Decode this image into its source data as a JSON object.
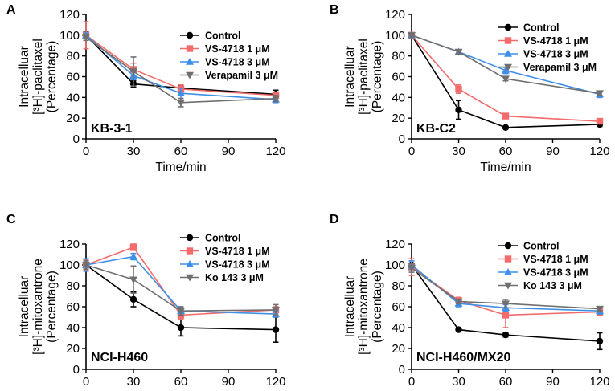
{
  "chart_data": [
    {
      "type": "line",
      "panel": "A",
      "label": "KB-3-1",
      "xlabel": "Time/min",
      "ylabel_lines": [
        "Intracelluar",
        "[³H]-paclitaxel",
        "(Percentage)"
      ],
      "xticks": [
        "0",
        "30",
        "60",
        "90",
        "120"
      ],
      "yticks": [
        "0",
        "20",
        "40",
        "60",
        "80",
        "100",
        "120"
      ],
      "xlim": [
        0,
        120
      ],
      "ylim": [
        0,
        120
      ],
      "x": [
        0,
        30,
        60,
        120
      ],
      "series": [
        {
          "name": "Control",
          "color": "#000000",
          "marker": "circle",
          "values": [
            100,
            53,
            49,
            43
          ],
          "errors": [
            3,
            3,
            2,
            4
          ]
        },
        {
          "name": "VS-4718 1 μM",
          "color": "#f36b6b",
          "marker": "square",
          "values": [
            100,
            67,
            48,
            42
          ],
          "errors": [
            13,
            6,
            4,
            3
          ]
        },
        {
          "name": "VS-4718 3 μM",
          "color": "#3f8fe8",
          "marker": "triangle-up",
          "values": [
            100,
            61,
            44,
            38
          ],
          "errors": [
            2,
            4,
            5,
            3
          ]
        },
        {
          "name": "Verapamil 3 μM",
          "color": "#6f6f6f",
          "marker": "triangle-down",
          "values": [
            98,
            65,
            35,
            39
          ],
          "errors": [
            3,
            14,
            4,
            3
          ]
        }
      ],
      "significance": ""
    },
    {
      "type": "line",
      "panel": "B",
      "label": "KB-C2",
      "xlabel": "Time/min",
      "ylabel_lines": [
        "Intracelluar",
        "[³H]-paclitaxel",
        "(Percentage)"
      ],
      "xticks": [
        "0",
        "30",
        "60",
        "90",
        "120"
      ],
      "yticks": [
        "0",
        "20",
        "40",
        "60",
        "80",
        "100",
        "120"
      ],
      "xlim": [
        0,
        120
      ],
      "ylim": [
        0,
        120
      ],
      "x": [
        0,
        30,
        60,
        120
      ],
      "series": [
        {
          "name": "Control",
          "color": "#000000",
          "marker": "circle",
          "values": [
            100,
            28,
            11,
            14
          ],
          "errors": [
            2,
            9,
            1,
            2
          ]
        },
        {
          "name": "VS-4718 1 μM",
          "color": "#f36b6b",
          "marker": "square",
          "values": [
            100,
            48,
            22,
            17
          ],
          "errors": [
            2,
            4,
            2,
            2
          ]
        },
        {
          "name": "VS-4718 3 μM",
          "color": "#3f8fe8",
          "marker": "triangle-up",
          "values": [
            100,
            84,
            66,
            43
          ],
          "errors": [
            2,
            2,
            3,
            3
          ]
        },
        {
          "name": "Verapamil 3 μM",
          "color": "#6f6f6f",
          "marker": "triangle-down",
          "values": [
            100,
            84,
            58,
            44
          ],
          "errors": [
            2,
            2,
            2,
            2
          ]
        }
      ],
      "significance": "**"
    },
    {
      "type": "line",
      "panel": "C",
      "label": "NCI-H460",
      "xlabel": "Time/min",
      "ylabel_lines": [
        "Intracelluar",
        "[³H]-mitoxantrone",
        "(Percentage)"
      ],
      "xticks": [
        "0",
        "30",
        "60",
        "90",
        "120"
      ],
      "yticks": [
        "0",
        "20",
        "40",
        "60",
        "80",
        "100",
        "120"
      ],
      "xlim": [
        0,
        120
      ],
      "ylim": [
        0,
        120
      ],
      "x": [
        0,
        30,
        60,
        120
      ],
      "series": [
        {
          "name": "Control",
          "color": "#000000",
          "marker": "circle",
          "values": [
            100,
            67,
            40,
            38
          ],
          "errors": [
            4,
            7,
            8,
            12
          ]
        },
        {
          "name": "VS-4718 1 μM",
          "color": "#f36b6b",
          "marker": "square",
          "values": [
            100,
            117,
            52,
            57
          ],
          "errors": [
            5,
            3,
            4,
            3
          ]
        },
        {
          "name": "VS-4718 3 μM",
          "color": "#3f8fe8",
          "marker": "triangle-up",
          "values": [
            100,
            108,
            56,
            53
          ],
          "errors": [
            6,
            3,
            4,
            3
          ]
        },
        {
          "name": "Ko 143 3 μM",
          "color": "#6f6f6f",
          "marker": "triangle-down",
          "values": [
            100,
            86,
            56,
            57
          ],
          "errors": [
            4,
            13,
            4,
            5
          ]
        }
      ],
      "significance": ""
    },
    {
      "type": "line",
      "panel": "D",
      "label": "NCI-H460/MX20",
      "xlabel": "Time/min",
      "ylabel_lines": [
        "Intracelluar",
        "[³H]-mitoxantrone",
        "(Percentage)"
      ],
      "xticks": [
        "0",
        "30",
        "60",
        "90",
        "120"
      ],
      "yticks": [
        "0",
        "20",
        "40",
        "60",
        "80",
        "100",
        "120"
      ],
      "xlim": [
        0,
        120
      ],
      "ylim": [
        0,
        120
      ],
      "x": [
        0,
        30,
        60,
        120
      ],
      "series": [
        {
          "name": "Control",
          "color": "#000000",
          "marker": "circle",
          "values": [
            100,
            38,
            33,
            27
          ],
          "errors": [
            4,
            2,
            2,
            8
          ]
        },
        {
          "name": "VS-4718 1 μM",
          "color": "#f36b6b",
          "marker": "square",
          "values": [
            98,
            66,
            52,
            55
          ],
          "errors": [
            8,
            3,
            12,
            3
          ]
        },
        {
          "name": "VS-4718 3 μM",
          "color": "#3f8fe8",
          "marker": "triangle-up",
          "values": [
            100,
            63,
            59,
            56
          ],
          "errors": [
            4,
            3,
            3,
            3
          ]
        },
        {
          "name": "Ko 143 3 μM",
          "color": "#6f6f6f",
          "marker": "triangle-down",
          "values": [
            97,
            65,
            63,
            58
          ],
          "errors": [
            4,
            2,
            4,
            2
          ]
        }
      ],
      "significance": "***"
    }
  ]
}
